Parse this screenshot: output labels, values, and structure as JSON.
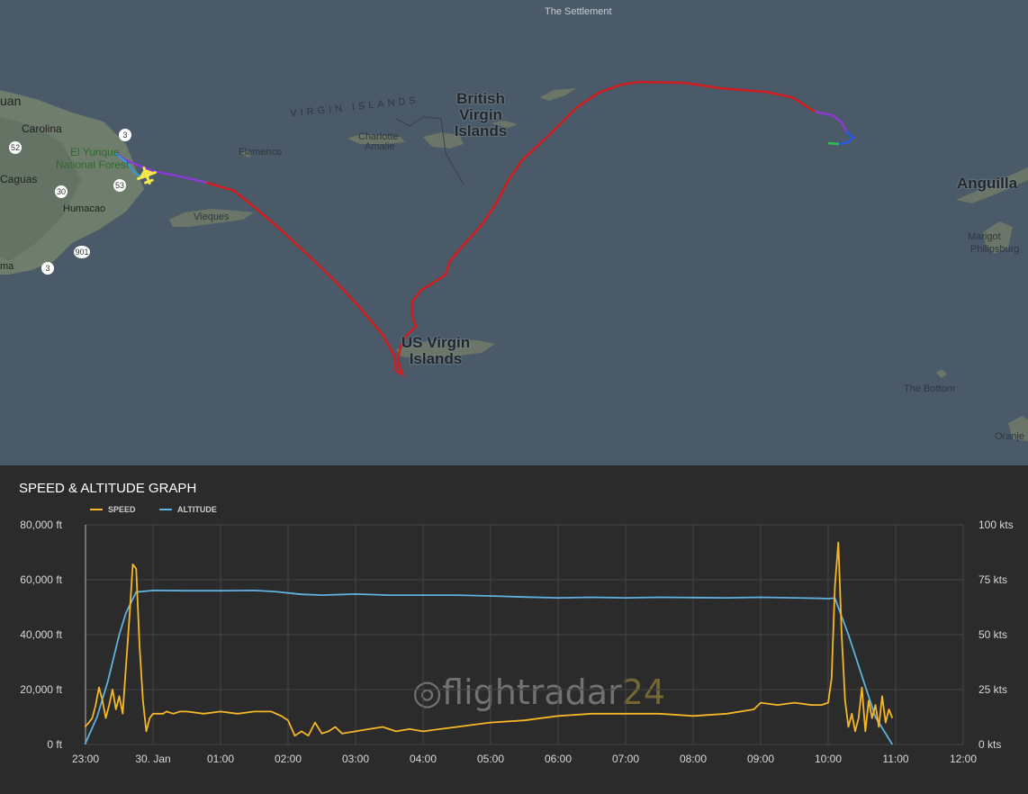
{
  "map": {
    "labels": {
      "the_settlement": "The Settlement",
      "uan": "uan",
      "carolina": "Carolina",
      "el_yunque": "El Yunque",
      "national_forest": "National Forest",
      "caguas": "Caguas",
      "humacao": "Humacao",
      "ma": "ma",
      "flamenco": "Flamenco",
      "vieques": "Vieques",
      "charlotte": "Charlotte",
      "amalie": "Amalie",
      "virgin_islands_spaced": "VIRGIN ISLANDS",
      "british_virgin_islands": "British Virgin Islands",
      "us_virgin_islands": "US Virgin Islands",
      "anguilla": "Anguilla",
      "marigot": "Marigot",
      "philipsburg": "Philipsburg",
      "the_bottom": "The Bottom",
      "oranje": "Oranje"
    },
    "road_shields": [
      "3",
      "52",
      "30",
      "53",
      "901",
      "3"
    ],
    "aircraft_icon": "airplane-icon",
    "colors": {
      "sea": "#4a5a68",
      "land": "#6b7a6a",
      "track": "#d11d1d"
    }
  },
  "graph": {
    "title": "SPEED & ALTITUDE GRAPH",
    "legend": {
      "speed": "SPEED",
      "altitude": "ALTITUDE"
    },
    "watermark": {
      "main": "flightradar",
      "accent": "24"
    },
    "colors": {
      "speed": "#f5b728",
      "altitude": "#5fb2e0",
      "grid": "#444444"
    }
  },
  "chart_data": {
    "type": "line",
    "title": "SPEED & ALTITUDE GRAPH",
    "x_ticks": [
      "23:00",
      "30. Jan",
      "01:00",
      "02:00",
      "03:00",
      "04:00",
      "05:00",
      "06:00",
      "07:00",
      "08:00",
      "09:00",
      "10:00",
      "11:00",
      "12:00"
    ],
    "y_left": {
      "ticks": [
        "0 ft",
        "20,000 ft",
        "40,000 ft",
        "60,000 ft",
        "80,000 ft"
      ],
      "ylim": [
        0,
        80000
      ]
    },
    "y_right": {
      "ticks": [
        "0 kts",
        "25 kts",
        "50 kts",
        "75 kts",
        "100 kts"
      ],
      "ylim": [
        0,
        100
      ]
    },
    "grid": true,
    "legend_position": "top-left",
    "series": [
      {
        "name": "ALTITUDE",
        "axis": "left",
        "unit": "ft",
        "x": [
          -0.01,
          0.17,
          0.33,
          0.5,
          0.6,
          0.75,
          1.0,
          1.5,
          2.0,
          2.5,
          2.8,
          3.2,
          3.5,
          4.0,
          4.5,
          5.0,
          5.5,
          6.0,
          6.5,
          7.0,
          7.5,
          8.0,
          8.5,
          9.0,
          9.5,
          10.0,
          10.5,
          10.9,
          11.0,
          11.1,
          11.3,
          11.5,
          11.7,
          11.95
        ],
        "y": [
          0,
          10000,
          23000,
          40000,
          48000,
          55500,
          56100,
          56000,
          56000,
          56100,
          55700,
          54700,
          54400,
          54800,
          54400,
          54400,
          54400,
          54100,
          53700,
          53400,
          53600,
          53400,
          53600,
          53500,
          53400,
          53600,
          53400,
          53200,
          53100,
          53300,
          40000,
          25000,
          10000,
          0
        ]
      },
      {
        "name": "SPEED",
        "axis": "right",
        "unit": "kts",
        "x": [
          -0.01,
          0.05,
          0.1,
          0.15,
          0.2,
          0.25,
          0.3,
          0.35,
          0.4,
          0.45,
          0.5,
          0.55,
          0.6,
          0.65,
          0.7,
          0.75,
          0.8,
          0.85,
          0.9,
          0.95,
          1.0,
          1.05,
          1.1,
          1.15,
          1.2,
          1.3,
          1.4,
          1.5,
          1.75,
          2.0,
          2.25,
          2.5,
          2.75,
          2.9,
          3.0,
          3.1,
          3.2,
          3.3,
          3.4,
          3.5,
          3.6,
          3.7,
          3.8,
          4.0,
          4.2,
          4.4,
          4.6,
          4.8,
          5.0,
          5.25,
          5.5,
          5.75,
          6.0,
          6.5,
          7.0,
          7.5,
          8.0,
          8.5,
          9.0,
          9.5,
          9.9,
          10.0,
          10.25,
          10.5,
          10.75,
          10.9,
          11.0,
          11.05,
          11.1,
          11.15,
          11.2,
          11.25,
          11.3,
          11.35,
          11.4,
          11.45,
          11.5,
          11.55,
          11.6,
          11.65,
          11.7,
          11.75,
          11.8,
          11.85,
          11.9,
          11.95
        ],
        "y": [
          8,
          10,
          12,
          18,
          26,
          20,
          12,
          18,
          25,
          16,
          22,
          14,
          36,
          58,
          82,
          80,
          45,
          20,
          6,
          12,
          14,
          14,
          14,
          14,
          15,
          14,
          15,
          15,
          14,
          15,
          14,
          15,
          15,
          13,
          11,
          4,
          6,
          4,
          10,
          5,
          6,
          8,
          5,
          6,
          7,
          8,
          6,
          7,
          6,
          7,
          8,
          9,
          10,
          11,
          13,
          14,
          14,
          14,
          13,
          14,
          16,
          19,
          18,
          19,
          18,
          18,
          19,
          30,
          72,
          92,
          50,
          20,
          8,
          14,
          6,
          12,
          26,
          6,
          20,
          12,
          18,
          8,
          22,
          10,
          16,
          12
        ]
      }
    ]
  }
}
